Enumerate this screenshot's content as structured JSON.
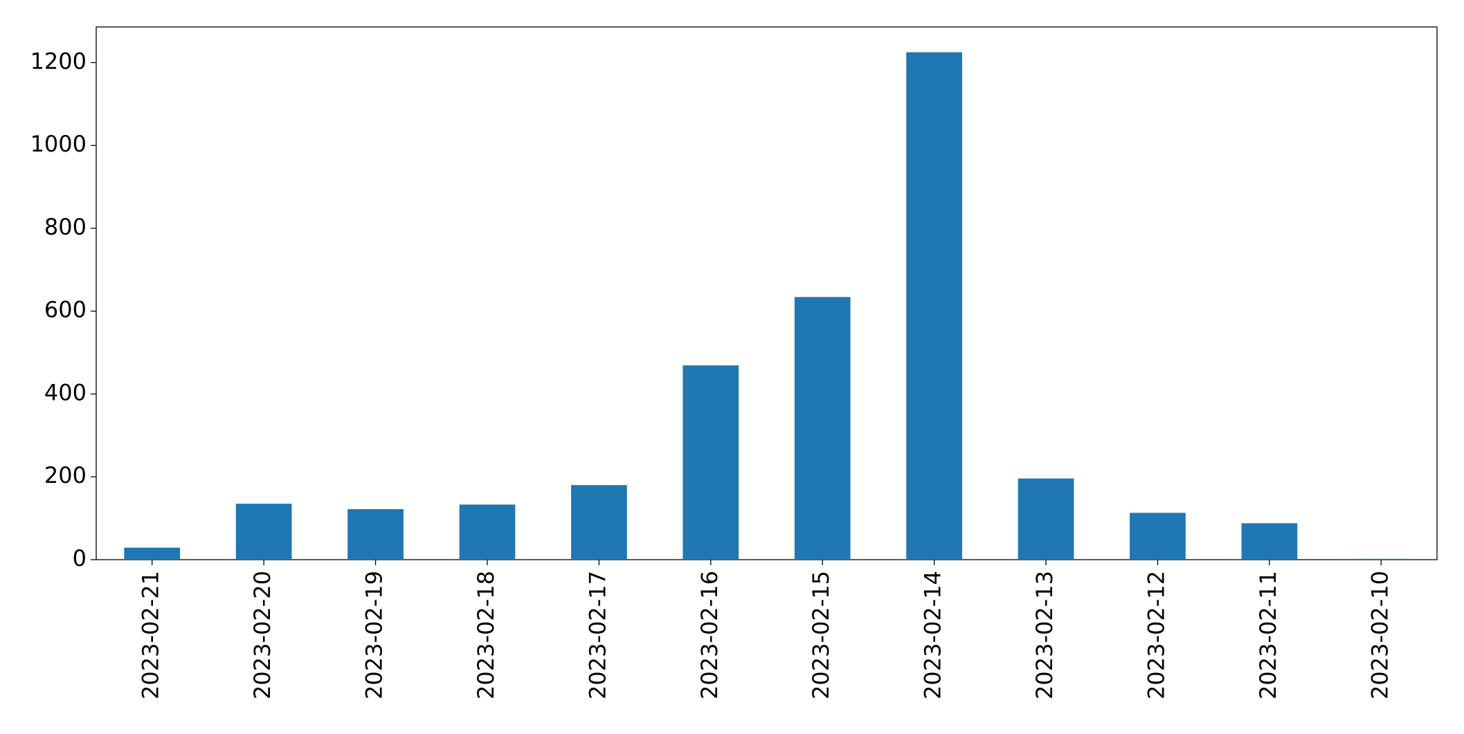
{
  "chart_data": {
    "type": "bar",
    "categories": [
      "2023-02-21",
      "2023-02-20",
      "2023-02-19",
      "2023-02-18",
      "2023-02-17",
      "2023-02-16",
      "2023-02-15",
      "2023-02-14",
      "2023-02-13",
      "2023-02-12",
      "2023-02-11",
      "2023-02-10"
    ],
    "values": [
      29,
      135,
      122,
      133,
      180,
      469,
      634,
      1225,
      196,
      113,
      88,
      2
    ],
    "color": "#1f77b4",
    "ylim": [
      0,
      1286
    ],
    "yticks": [
      0,
      200,
      400,
      600,
      800,
      1000,
      1200
    ],
    "grid": false
  }
}
